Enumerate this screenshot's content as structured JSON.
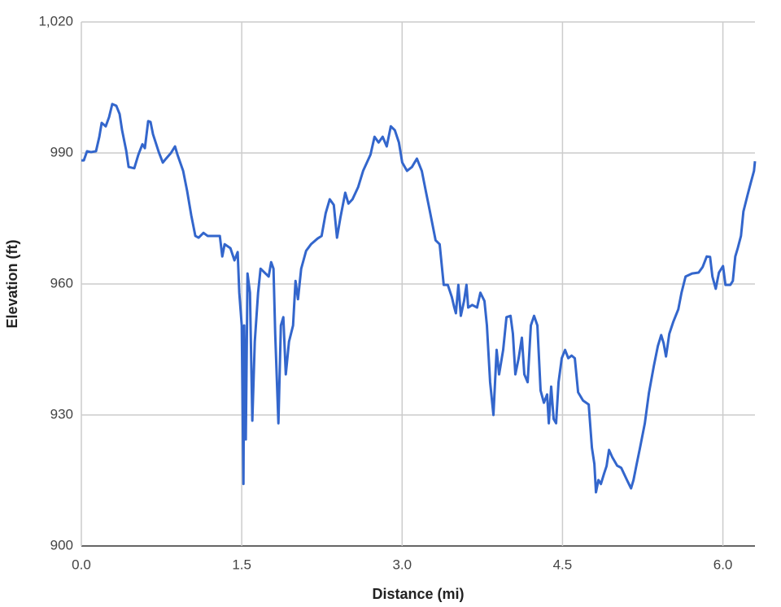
{
  "chart_data": {
    "type": "line",
    "xlabel": "Distance (mi)",
    "ylabel": "Elevation (ft)",
    "xlim": [
      0,
      6.3
    ],
    "ylim": [
      900,
      1020
    ],
    "xticks": [
      {
        "value": 0,
        "label": "0.0"
      },
      1.5,
      {
        "value": 3,
        "label": "3.0"
      },
      4.5,
      {
        "value": 6,
        "label": "6.0"
      }
    ],
    "yticks": [
      900,
      930,
      960,
      990,
      {
        "value": 1020,
        "label": "1,020"
      }
    ],
    "grid": true,
    "x": [
      0,
      0.023,
      0.053,
      0.091,
      0.137,
      0.168,
      0.19,
      0.228,
      0.259,
      0.289,
      0.327,
      0.358,
      0.381,
      0.419,
      0.442,
      0.495,
      0.533,
      0.571,
      0.594,
      0.625,
      0.647,
      0.67,
      0.724,
      0.762,
      0.792,
      0.838,
      0.876,
      0.899,
      0.952,
      0.99,
      1.028,
      1.066,
      1.097,
      1.142,
      1.181,
      1.234,
      1.295,
      1.318,
      1.34,
      1.394,
      1.432,
      1.462,
      1.477,
      1.5,
      1.516,
      1.523,
      1.538,
      1.554,
      1.577,
      1.599,
      1.622,
      1.653,
      1.676,
      1.714,
      1.752,
      1.775,
      1.797,
      1.813,
      1.843,
      1.866,
      1.889,
      1.912,
      1.942,
      1.98,
      2.003,
      2.026,
      2.056,
      2.102,
      2.148,
      2.209,
      2.247,
      2.285,
      2.323,
      2.361,
      2.391,
      2.422,
      2.468,
      2.498,
      2.536,
      2.589,
      2.635,
      2.704,
      2.742,
      2.78,
      2.818,
      2.856,
      2.894,
      2.932,
      2.97,
      3.001,
      3.046,
      3.092,
      3.138,
      3.184,
      3.222,
      3.26,
      3.313,
      3.351,
      3.389,
      3.427,
      3.465,
      3.488,
      3.503,
      3.526,
      3.549,
      3.579,
      3.602,
      3.618,
      3.656,
      3.701,
      3.732,
      3.77,
      3.793,
      3.823,
      3.854,
      3.884,
      3.907,
      3.945,
      3.976,
      4.014,
      4.036,
      4.059,
      4.09,
      4.12,
      4.143,
      4.174,
      4.204,
      4.234,
      4.265,
      4.295,
      4.326,
      4.356,
      4.372,
      4.394,
      4.417,
      4.44,
      4.463,
      4.493,
      4.524,
      4.554,
      4.585,
      4.615,
      4.646,
      4.692,
      4.745,
      4.775,
      4.798,
      4.813,
      4.836,
      4.859,
      4.889,
      4.912,
      4.935,
      4.966,
      5.011,
      5.049,
      5.103,
      5.141,
      5.164,
      5.194,
      5.225,
      5.27,
      5.308,
      5.354,
      5.392,
      5.423,
      5.446,
      5.468,
      5.499,
      5.537,
      5.583,
      5.613,
      5.651,
      5.712,
      5.773,
      5.811,
      5.849,
      5.88,
      5.902,
      5.933,
      5.963,
      6.001,
      6.024,
      6.07,
      6.093,
      6.116,
      6.139,
      6.169,
      6.192,
      6.23,
      6.26,
      6.291,
      6.3
    ],
    "series": [
      {
        "color": "#3366cc",
        "values": [
          988.3,
          988.3,
          990.4,
          990.2,
          990.4,
          993.7,
          996.9,
          996.1,
          998.2,
          1001.2,
          1000.8,
          998.9,
          995.2,
          990.6,
          986.8,
          986.5,
          989.6,
          992.0,
          991.1,
          997.3,
          997.1,
          994.3,
          990.2,
          987.8,
          988.7,
          990.0,
          991.5,
          989.6,
          985.9,
          981.2,
          975.7,
          971.0,
          970.6,
          971.7,
          971.0,
          971.0,
          971.0,
          966.3,
          969.1,
          968.2,
          965.4,
          967.3,
          958.0,
          950.5,
          914.2,
          950.5,
          924.4,
          962.4,
          958.0,
          928.7,
          946.8,
          958.0,
          963.5,
          962.6,
          961.7,
          965.0,
          963.5,
          948.6,
          928.1,
          950.5,
          952.4,
          939.3,
          946.8,
          950.5,
          960.7,
          956.5,
          963.5,
          967.6,
          969.1,
          970.4,
          971.0,
          976.2,
          979.4,
          978.1,
          970.6,
          975.1,
          980.9,
          978.4,
          979.4,
          982.2,
          985.9,
          989.6,
          993.7,
          992.4,
          993.7,
          991.5,
          996.1,
          995.2,
          992.4,
          987.8,
          985.9,
          986.8,
          988.7,
          985.9,
          981.2,
          976.6,
          970.0,
          969.1,
          959.8,
          959.8,
          957.0,
          954.6,
          953.3,
          959.8,
          952.7,
          956.1,
          959.8,
          954.6,
          955.2,
          954.6,
          958.0,
          956.1,
          950.5,
          937.5,
          930.0,
          944.9,
          939.3,
          944.9,
          952.4,
          952.7,
          948.6,
          939.3,
          943.0,
          947.7,
          939.3,
          937.5,
          950.5,
          952.7,
          950.5,
          935.6,
          932.8,
          934.7,
          928.1,
          936.5,
          929.1,
          928.1,
          937.5,
          943.0,
          944.9,
          943.0,
          943.6,
          943.0,
          935.2,
          933.3,
          932.4,
          922.5,
          918.8,
          912.3,
          915.1,
          914.2,
          916.6,
          918.3,
          922.0,
          920.3,
          918.4,
          917.9,
          915.1,
          913.2,
          915.1,
          918.8,
          922.5,
          928.1,
          935.0,
          941.2,
          945.8,
          948.3,
          946.4,
          943.4,
          948.6,
          951.4,
          954.2,
          958.0,
          961.7,
          962.4,
          962.6,
          963.9,
          966.3,
          966.2,
          961.7,
          958.9,
          962.6,
          964.1,
          959.8,
          959.8,
          960.7,
          966.3,
          968.2,
          971.0,
          976.6,
          980.3,
          983.1,
          985.9,
          988.1
        ]
      }
    ]
  }
}
